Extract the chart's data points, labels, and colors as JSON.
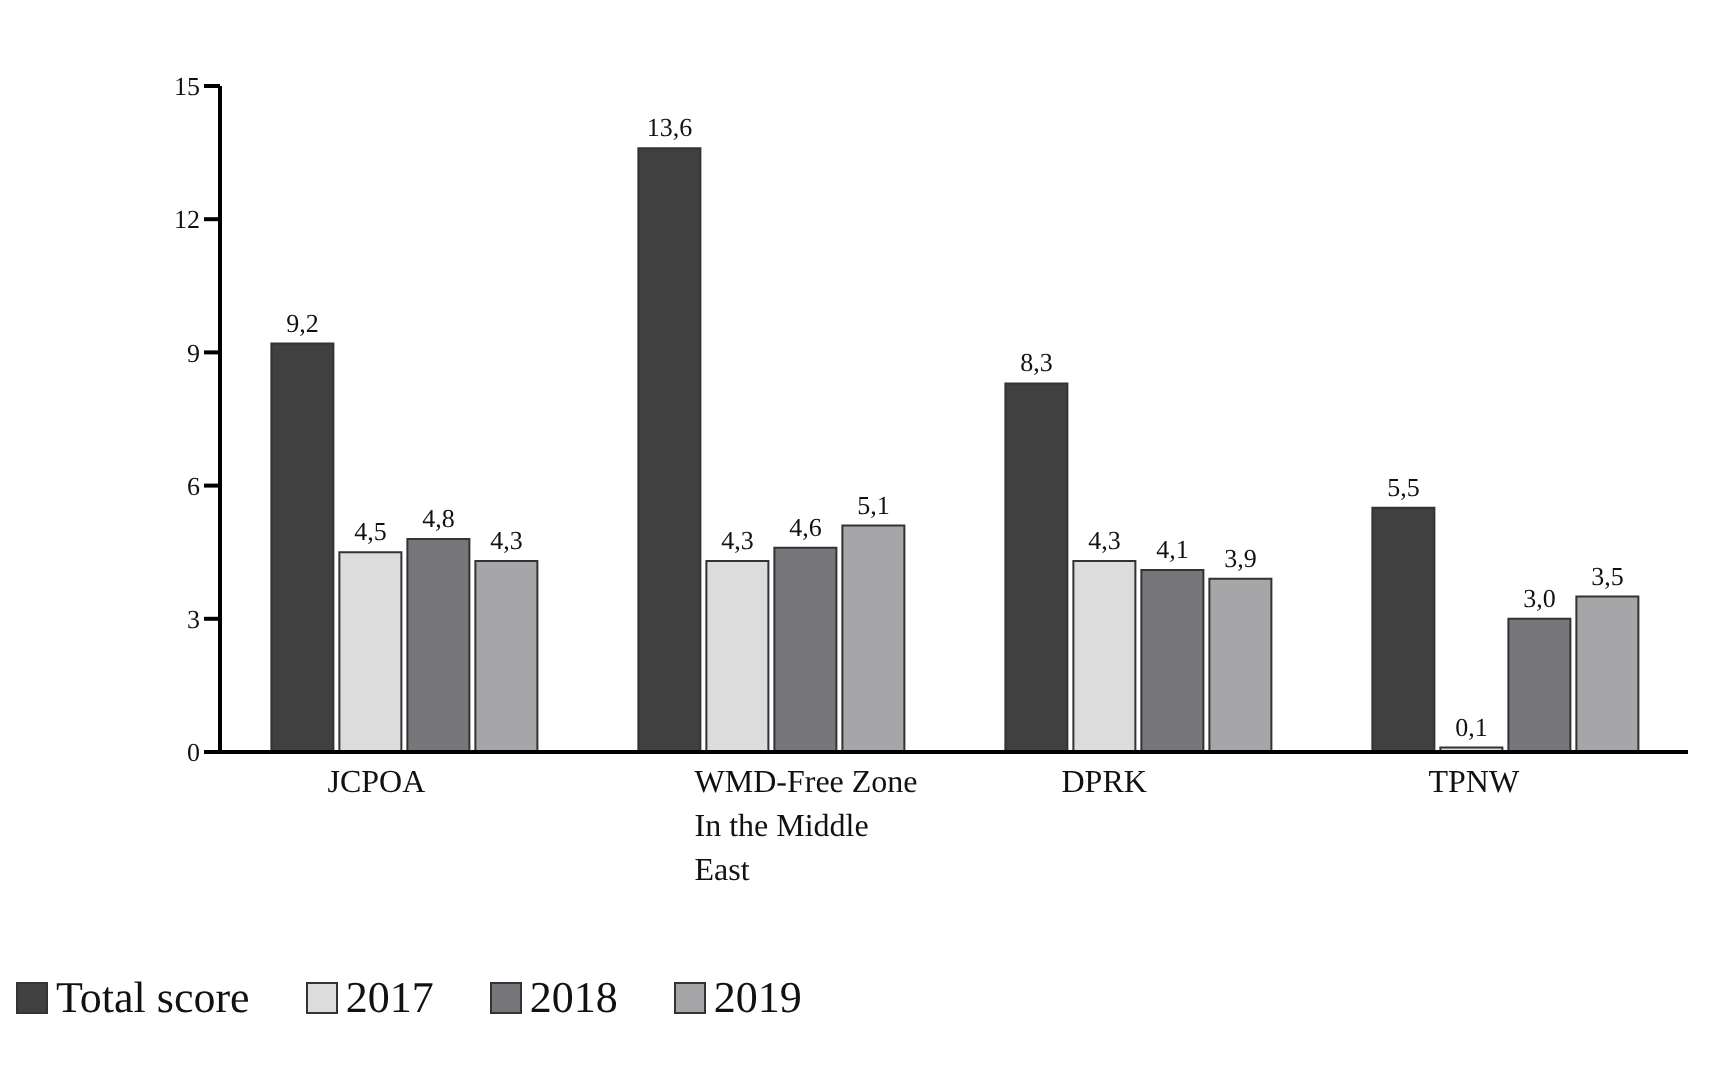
{
  "chart_data": {
    "type": "bar",
    "categories": [
      "JCPOA",
      "WMD-Free Zone In the Middle East",
      "DPRK",
      "TPNW"
    ],
    "series": [
      {
        "name": "Total score",
        "color": "#404040",
        "values": [
          9.2,
          13.6,
          8.3,
          5.5
        ],
        "value_labels": [
          "9,2",
          "13,6",
          "8,3",
          "5,5"
        ]
      },
      {
        "name": "2017",
        "color": "#dcdcdd",
        "values": [
          4.5,
          4.3,
          4.3,
          0.1
        ],
        "value_labels": [
          "4,5",
          "4,3",
          "4,3",
          "0,1"
        ]
      },
      {
        "name": "2018",
        "color": "#77777b",
        "values": [
          4.8,
          4.6,
          4.1,
          3.0
        ],
        "value_labels": [
          "4,8",
          "4,6",
          "4,1",
          "3,0"
        ]
      },
      {
        "name": "2019",
        "color": "#a6a6a9",
        "values": [
          4.3,
          5.1,
          3.9,
          3.5
        ],
        "value_labels": [
          "4,3",
          "5,1",
          "3,9",
          "3,5"
        ]
      }
    ],
    "ylim": [
      0,
      15
    ],
    "yticks": [
      0,
      3,
      6,
      9,
      12,
      15
    ],
    "grid": false,
    "legend": "bottom left"
  }
}
